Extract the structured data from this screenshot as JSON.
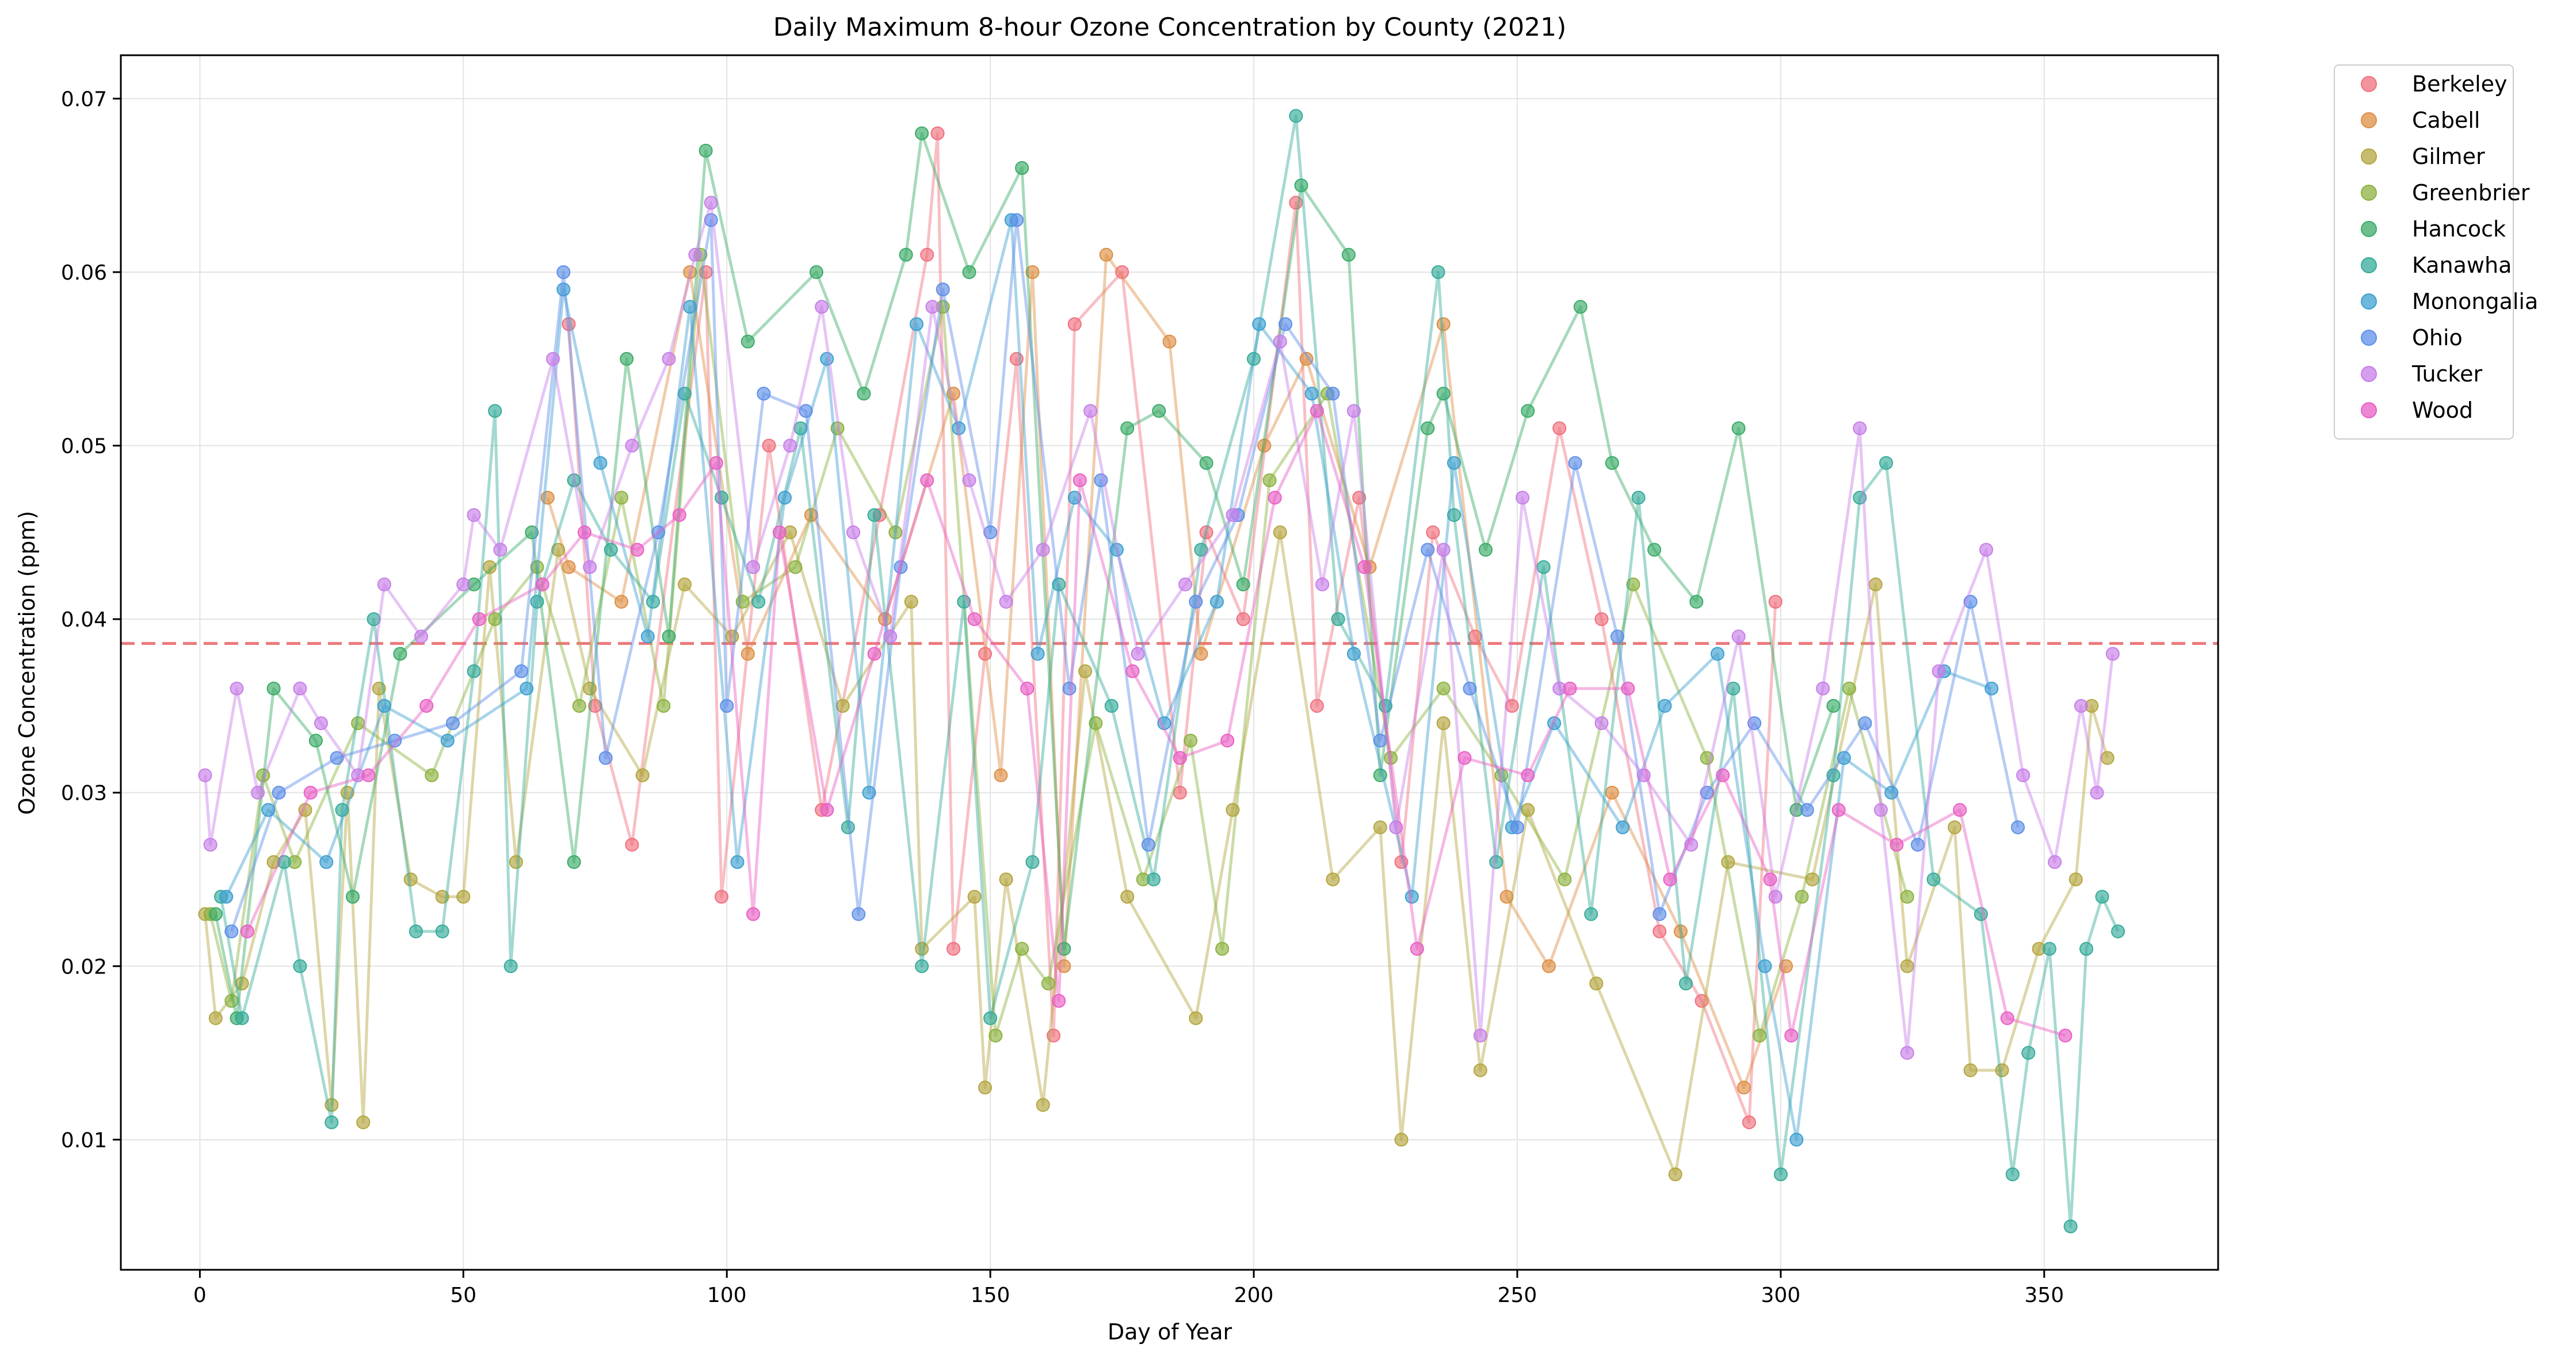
{
  "chart_data": {
    "type": "line",
    "title": "Daily Maximum 8-hour Ozone Concentration by County (2021)",
    "xlabel": "Day of Year",
    "ylabel": "Ozone Concentration (ppm)",
    "xlim": [
      -15,
      383
    ],
    "ylim": [
      0.0025,
      0.0725
    ],
    "xticks": [
      0,
      50,
      100,
      150,
      200,
      250,
      300,
      350
    ],
    "yticks": [
      0.01,
      0.02,
      0.03,
      0.04,
      0.05,
      0.06,
      0.07
    ],
    "xtick_labels": [
      "0",
      "50",
      "100",
      "150",
      "200",
      "250",
      "300",
      "350"
    ],
    "ytick_labels": [
      "0.01",
      "0.02",
      "0.03",
      "0.04",
      "0.05",
      "0.06",
      "0.07"
    ],
    "grid": true,
    "legend_position": "outside-top-right",
    "reference_line": {
      "y": 0.0386,
      "color": "#e8585a",
      "style": "dashed"
    },
    "series": [
      {
        "name": "Berkeley",
        "color": "#f0707e",
        "x": [
          70,
          75,
          82,
          96,
          99,
          108,
          118,
          129,
          138,
          140,
          143,
          149,
          155,
          162,
          166,
          175,
          186,
          191,
          198,
          208,
          212,
          220,
          228,
          234,
          242,
          249,
          258,
          266,
          277,
          285,
          294,
          299
        ],
        "values": [
          0.057,
          0.035,
          0.027,
          0.06,
          0.024,
          0.05,
          0.029,
          0.046,
          0.061,
          0.068,
          0.021,
          0.038,
          0.055,
          0.016,
          0.057,
          0.06,
          0.03,
          0.045,
          0.04,
          0.064,
          0.035,
          0.047,
          0.026,
          0.045,
          0.039,
          0.035,
          0.051,
          0.04,
          0.022,
          0.018,
          0.011,
          0.041
        ]
      },
      {
        "name": "Cabell",
        "color": "#dd8f44",
        "x": [
          66,
          70,
          80,
          93,
          104,
          116,
          130,
          143,
          152,
          158,
          164,
          172,
          184,
          190,
          202,
          210,
          222,
          236,
          248,
          256,
          268,
          281,
          293,
          301
        ],
        "values": [
          0.047,
          0.043,
          0.041,
          0.06,
          0.038,
          0.046,
          0.04,
          0.053,
          0.031,
          0.06,
          0.02,
          0.061,
          0.056,
          0.038,
          0.05,
          0.055,
          0.043,
          0.057,
          0.024,
          0.02,
          0.03,
          0.022,
          0.013,
          0.02
        ]
      },
      {
        "name": "Gilmer",
        "color": "#b3a53e",
        "x": [
          1,
          3,
          8,
          14,
          20,
          25,
          28,
          31,
          34,
          40,
          46,
          50,
          55,
          60,
          68,
          74,
          84,
          92,
          101,
          112,
          122,
          135,
          137,
          147,
          149,
          153,
          160,
          168,
          176,
          189,
          196,
          205,
          215,
          224,
          228,
          236,
          243,
          252,
          265,
          280,
          290,
          306,
          318,
          324,
          333,
          336,
          342,
          349,
          356,
          359,
          362
        ],
        "values": [
          0.023,
          0.017,
          0.019,
          0.026,
          0.029,
          0.012,
          0.03,
          0.011,
          0.036,
          0.025,
          0.024,
          0.024,
          0.043,
          0.026,
          0.044,
          0.036,
          0.031,
          0.042,
          0.039,
          0.045,
          0.035,
          0.041,
          0.021,
          0.024,
          0.013,
          0.025,
          0.012,
          0.037,
          0.024,
          0.017,
          0.029,
          0.045,
          0.025,
          0.028,
          0.01,
          0.034,
          0.014,
          0.029,
          0.019,
          0.008,
          0.026,
          0.025,
          0.042,
          0.02,
          0.028,
          0.014,
          0.014,
          0.021,
          0.025,
          0.035,
          0.032
        ]
      },
      {
        "name": "Greenbrier",
        "color": "#8cb23f",
        "x": [
          2,
          6,
          12,
          18,
          30,
          44,
          56,
          64,
          72,
          80,
          88,
          95,
          103,
          113,
          121,
          132,
          141,
          151,
          156,
          161,
          170,
          179,
          188,
          194,
          203,
          214,
          226,
          236,
          247,
          259,
          272,
          286,
          296,
          304,
          313,
          324
        ],
        "values": [
          0.023,
          0.018,
          0.031,
          0.026,
          0.034,
          0.031,
          0.04,
          0.043,
          0.035,
          0.047,
          0.035,
          0.061,
          0.041,
          0.043,
          0.051,
          0.045,
          0.058,
          0.016,
          0.021,
          0.019,
          0.034,
          0.025,
          0.033,
          0.021,
          0.048,
          0.053,
          0.032,
          0.036,
          0.031,
          0.025,
          0.042,
          0.032,
          0.016,
          0.024,
          0.036,
          0.024
        ]
      },
      {
        "name": "Hancock",
        "color": "#3aab67",
        "x": [
          3,
          7,
          14,
          22,
          29,
          38,
          52,
          63,
          71,
          81,
          89,
          96,
          104,
          117,
          126,
          134,
          137,
          146,
          156,
          164,
          176,
          182,
          191,
          198,
          209,
          218,
          224,
          233,
          236,
          244,
          252,
          262,
          268,
          276,
          284,
          292,
          303,
          310
        ],
        "values": [
          0.023,
          0.017,
          0.036,
          0.033,
          0.024,
          0.038,
          0.042,
          0.045,
          0.026,
          0.055,
          0.039,
          0.067,
          0.056,
          0.06,
          0.053,
          0.061,
          0.068,
          0.06,
          0.066,
          0.021,
          0.051,
          0.052,
          0.049,
          0.042,
          0.065,
          0.061,
          0.031,
          0.051,
          0.053,
          0.044,
          0.052,
          0.058,
          0.049,
          0.044,
          0.041,
          0.051,
          0.029,
          0.035
        ]
      },
      {
        "name": "Kanawha",
        "color": "#36ab9a",
        "x": [
          4,
          8,
          16,
          19,
          25,
          27,
          33,
          41,
          46,
          52,
          56,
          59,
          64,
          71,
          78,
          86,
          92,
          99,
          106,
          114,
          123,
          128,
          137,
          145,
          150,
          158,
          163,
          173,
          181,
          190,
          200,
          208,
          216,
          225,
          235,
          238,
          246,
          255,
          264,
          273,
          282,
          291,
          300,
          310,
          315,
          320,
          329,
          338,
          344,
          347,
          351,
          355,
          358,
          361,
          364
        ],
        "values": [
          0.024,
          0.017,
          0.026,
          0.02,
          0.011,
          0.029,
          0.04,
          0.022,
          0.022,
          0.037,
          0.052,
          0.02,
          0.041,
          0.048,
          0.044,
          0.041,
          0.053,
          0.047,
          0.041,
          0.051,
          0.028,
          0.046,
          0.02,
          0.041,
          0.017,
          0.026,
          0.042,
          0.035,
          0.025,
          0.044,
          0.055,
          0.069,
          0.04,
          0.035,
          0.06,
          0.046,
          0.026,
          0.043,
          0.023,
          0.047,
          0.019,
          0.036,
          0.008,
          0.031,
          0.047,
          0.049,
          0.025,
          0.023,
          0.008,
          0.015,
          0.021,
          0.005,
          0.021,
          0.024,
          0.022
        ]
      },
      {
        "name": "Monongalia",
        "color": "#3d9fd1",
        "x": [
          5,
          13,
          24,
          35,
          47,
          62,
          69,
          76,
          85,
          93,
          102,
          111,
          119,
          127,
          136,
          144,
          154,
          159,
          166,
          174,
          183,
          193,
          201,
          211,
          219,
          230,
          238,
          249,
          257,
          270,
          278,
          288,
          297,
          303,
          312,
          321,
          331,
          340
        ],
        "values": [
          0.024,
          0.029,
          0.026,
          0.035,
          0.033,
          0.036,
          0.059,
          0.049,
          0.039,
          0.058,
          0.026,
          0.047,
          0.055,
          0.03,
          0.057,
          0.051,
          0.063,
          0.038,
          0.047,
          0.044,
          0.034,
          0.041,
          0.057,
          0.053,
          0.038,
          0.024,
          0.049,
          0.028,
          0.034,
          0.028,
          0.035,
          0.038,
          0.02,
          0.01,
          0.032,
          0.03,
          0.037,
          0.036
        ]
      },
      {
        "name": "Ohio",
        "color": "#5e8fe8",
        "x": [
          6,
          15,
          26,
          37,
          48,
          61,
          69,
          77,
          87,
          97,
          100,
          107,
          115,
          125,
          133,
          141,
          150,
          155,
          165,
          171,
          180,
          189,
          197,
          206,
          215,
          224,
          233,
          241,
          250,
          261,
          269,
          277,
          286,
          295,
          305,
          316,
          326,
          336,
          345
        ],
        "values": [
          0.022,
          0.03,
          0.032,
          0.033,
          0.034,
          0.037,
          0.06,
          0.032,
          0.045,
          0.063,
          0.035,
          0.053,
          0.052,
          0.023,
          0.043,
          0.059,
          0.045,
          0.063,
          0.036,
          0.048,
          0.027,
          0.041,
          0.046,
          0.057,
          0.053,
          0.033,
          0.044,
          0.036,
          0.028,
          0.049,
          0.039,
          0.023,
          0.03,
          0.034,
          0.029,
          0.034,
          0.027,
          0.041,
          0.028
        ]
      },
      {
        "name": "Tucker",
        "color": "#c77ee8",
        "x": [
          1,
          2,
          7,
          11,
          19,
          23,
          30,
          35,
          42,
          50,
          52,
          57,
          67,
          74,
          82,
          89,
          94,
          97,
          105,
          112,
          118,
          124,
          131,
          139,
          146,
          153,
          160,
          169,
          178,
          187,
          196,
          205,
          213,
          219,
          227,
          236,
          243,
          251,
          258,
          266,
          274,
          283,
          292,
          299,
          308,
          315,
          319,
          324,
          330,
          339,
          346,
          352,
          357,
          360,
          363
        ],
        "values": [
          0.031,
          0.027,
          0.036,
          0.03,
          0.036,
          0.034,
          0.031,
          0.042,
          0.039,
          0.042,
          0.046,
          0.044,
          0.055,
          0.043,
          0.05,
          0.055,
          0.061,
          0.064,
          0.043,
          0.05,
          0.058,
          0.045,
          0.039,
          0.058,
          0.048,
          0.041,
          0.044,
          0.052,
          0.038,
          0.042,
          0.046,
          0.056,
          0.042,
          0.052,
          0.028,
          0.044,
          0.016,
          0.047,
          0.036,
          0.034,
          0.031,
          0.027,
          0.039,
          0.024,
          0.036,
          0.051,
          0.029,
          0.015,
          0.037,
          0.044,
          0.031,
          0.026,
          0.035,
          0.03,
          0.038
        ]
      },
      {
        "name": "Wood",
        "color": "#e85fc4",
        "x": [
          9,
          21,
          32,
          43,
          53,
          65,
          73,
          83,
          91,
          98,
          105,
          110,
          119,
          128,
          138,
          147,
          157,
          163,
          167,
          177,
          186,
          195,
          204,
          212,
          221,
          231,
          240,
          252,
          260,
          271,
          279,
          289,
          298,
          302,
          311,
          322,
          334,
          343,
          354
        ],
        "values": [
          0.022,
          0.03,
          0.031,
          0.035,
          0.04,
          0.042,
          0.045,
          0.044,
          0.046,
          0.049,
          0.023,
          0.045,
          0.029,
          0.038,
          0.048,
          0.04,
          0.036,
          0.018,
          0.048,
          0.037,
          0.032,
          0.033,
          0.047,
          0.052,
          0.043,
          0.021,
          0.032,
          0.031,
          0.036,
          0.036,
          0.025,
          0.031,
          0.025,
          0.016,
          0.029,
          0.027,
          0.029,
          0.017,
          0.016
        ]
      }
    ]
  }
}
